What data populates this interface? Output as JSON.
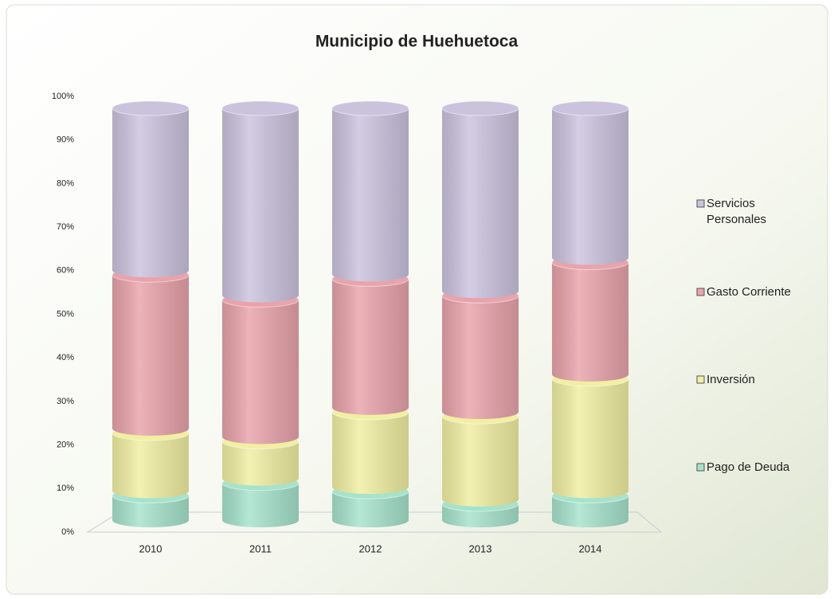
{
  "chart_data": {
    "type": "stacked-cylinder",
    "title": "Municipio de Huehuetoca",
    "categories": [
      "2010",
      "2011",
      "2012",
      "2013",
      "2014"
    ],
    "series": [
      {
        "name": "Servicios Personales",
        "color": "#cbc3de",
        "values": [
          40,
          46,
          41,
          45,
          37
        ]
      },
      {
        "name": "Gasto Corriente",
        "color": "#e9a3ab",
        "values": [
          38,
          34,
          32,
          29,
          28
        ]
      },
      {
        "name": "Inversión",
        "color": "#f1efa2",
        "values": [
          15,
          10,
          19,
          21,
          28
        ]
      },
      {
        "name": "Pago de Deuda",
        "color": "#a6e3cc",
        "values": [
          7,
          10,
          8,
          5,
          7
        ]
      }
    ],
    "ylim": [
      0,
      100
    ],
    "yticks": [
      {
        "value": 0,
        "label": "0%"
      },
      {
        "value": 10,
        "label": "10%"
      },
      {
        "value": 20,
        "label": "20%"
      },
      {
        "value": 30,
        "label": "30%"
      },
      {
        "value": 40,
        "label": "40%"
      },
      {
        "value": 50,
        "label": "50%"
      },
      {
        "value": 60,
        "label": "60%"
      },
      {
        "value": 70,
        "label": "70%"
      },
      {
        "value": 80,
        "label": "80%"
      },
      {
        "value": 90,
        "label": "90%"
      },
      {
        "value": 100,
        "label": "100%"
      }
    ]
  }
}
